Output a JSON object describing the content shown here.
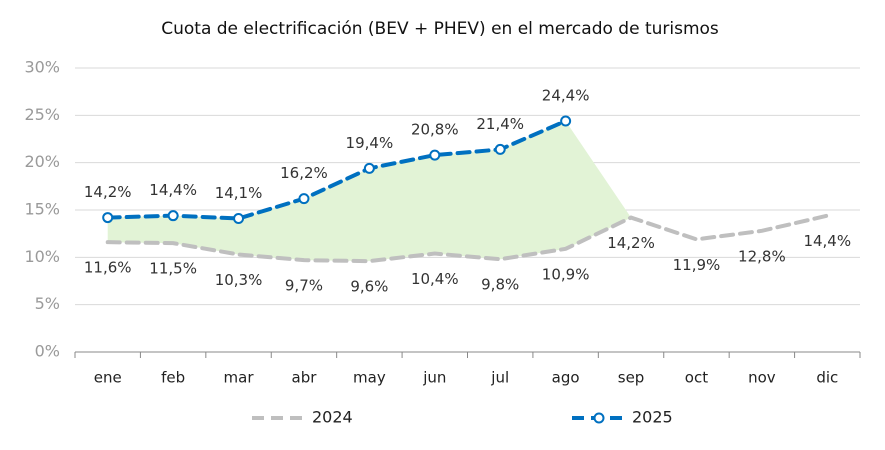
{
  "chart_data": {
    "type": "line",
    "title": "Cuota de electrificación (BEV + PHEV) en el mercado de turismos",
    "categories": [
      "ene",
      "feb",
      "mar",
      "abr",
      "may",
      "jun",
      "jul",
      "ago",
      "sep",
      "oct",
      "nov",
      "dic"
    ],
    "series": [
      {
        "name": "2024",
        "color": "#bfbfbf",
        "values": [
          11.6,
          11.5,
          10.3,
          9.7,
          9.6,
          10.4,
          9.8,
          10.9,
          14.2,
          11.9,
          12.8,
          14.4
        ],
        "value_labels": [
          "11,6%",
          "11,5%",
          "10,3%",
          "9,7%",
          "9,6%",
          "10,4%",
          "9,8%",
          "10,9%",
          "14,2%",
          "11,9%",
          "12,8%",
          "14,4%"
        ]
      },
      {
        "name": "2025",
        "color": "#0070c0",
        "values": [
          14.2,
          14.4,
          14.1,
          16.2,
          19.4,
          20.8,
          21.4,
          24.4,
          null,
          null,
          null,
          null
        ],
        "value_labels": [
          "14,2%",
          "14,4%",
          "14,1%",
          "16,2%",
          "19,4%",
          "20,8%",
          "21,4%",
          "24,4%",
          null,
          null,
          null,
          null
        ]
      }
    ],
    "fill_color": "#e2f3d6",
    "ylim": [
      0,
      30
    ],
    "yticks": [
      {
        "value": 0,
        "label": "0%"
      },
      {
        "value": 5,
        "label": "5%"
      },
      {
        "value": 10,
        "label": "10%"
      },
      {
        "value": 15,
        "label": "15%"
      },
      {
        "value": 20,
        "label": "20%"
      },
      {
        "value": 25,
        "label": "25%"
      },
      {
        "value": 30,
        "label": "30%"
      }
    ],
    "grid": true,
    "legend": "bottom"
  }
}
